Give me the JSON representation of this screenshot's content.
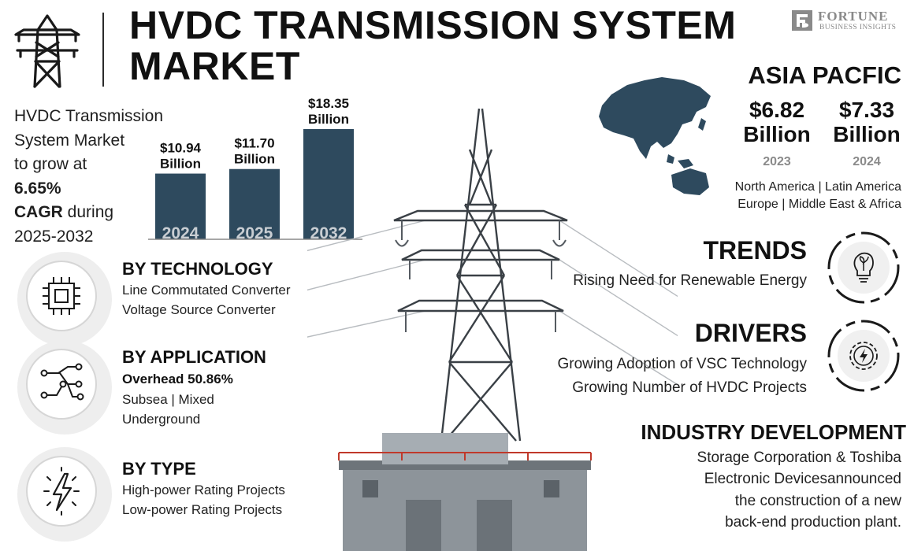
{
  "header": {
    "title_line1": "HVDC TRANSMISSION SYSTEM",
    "title_line2": "MARKET",
    "icon": "transmission-tower-icon"
  },
  "brand": {
    "name": "FORTUNE",
    "sub": "BUSINESS INSIGHTS",
    "icon": "fortune-logo-icon"
  },
  "growth": {
    "line1": "HVDC Transmission",
    "line2": "System Market",
    "line3": "to grow at",
    "rate": "6.65%",
    "cagr": "CAGR",
    "during": " during",
    "period": "2025-2032"
  },
  "chart_data": {
    "type": "bar",
    "categories": [
      "2024",
      "2025",
      "2032"
    ],
    "values": [
      10.94,
      11.7,
      18.35
    ],
    "value_labels": [
      "$10.94",
      "$11.70",
      "$18.35"
    ],
    "unit_label": "Billion",
    "bar_color": "#2e4a5e",
    "ylim": [
      0,
      18.35
    ]
  },
  "region": {
    "title": "ASIA PACFIC",
    "values": [
      {
        "amount": "$6.82",
        "unit": "Billion",
        "year": "2023"
      },
      {
        "amount": "$7.33",
        "unit": "Billion",
        "year": "2024"
      }
    ],
    "others_line1": "North America  |  Latin America",
    "others_line2": "Europe  |  Middle East & Africa",
    "map_color": "#2e4a5e"
  },
  "segments": {
    "technology": {
      "title": "BY TECHNOLOGY",
      "items": [
        "Line Commutated Converter",
        "Voltage Source Converter"
      ],
      "icon": "circuit-chip-icon"
    },
    "application": {
      "title": "BY APPLICATION",
      "highlight": "Overhead 50.86%",
      "line2": "Subsea  |  Mixed",
      "line3": "Underground",
      "icon": "network-nodes-icon"
    },
    "type": {
      "title": "BY TYPE",
      "items": [
        "High-power Rating Projects",
        "Low-power Rating Projects"
      ],
      "icon": "lightning-bolt-icon"
    }
  },
  "trends": {
    "title": "TRENDS",
    "text": "Rising Need for Renewable Energy",
    "icon": "eco-bulb-icon"
  },
  "drivers": {
    "title": "DRIVERS",
    "line1": "Growing Adoption of VSC Technology",
    "line2": "Growing Number of HVDC Projects",
    "icon": "power-gear-icon"
  },
  "development": {
    "title": "INDUSTRY DEVELOPMENT",
    "lines": [
      "Storage Corporation & Toshiba",
      "Electronic Devicesannounced",
      "the construction of a new",
      "back-end production plant."
    ]
  },
  "colors": {
    "accent": "#2e4a5e",
    "muted": "#8a8a8a",
    "text": "#111111"
  }
}
